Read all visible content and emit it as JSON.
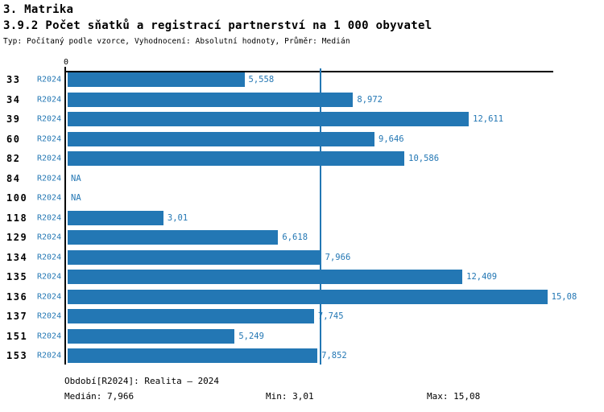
{
  "page": {
    "section_title": "3. Matrika",
    "chart_title": "3.9.2 Počet sňatků a registrací partnerství na 1 000 obyvatel",
    "subtitle": "Typ: Počítaný podle vzorce, Vyhodnocení: Absolutní hodnoty, Průměr: Medián"
  },
  "chart_data": {
    "type": "bar",
    "orientation": "horizontal",
    "title": "3.9.2 Počet sňatků a registrací partnerství na 1 000 obyvatel",
    "axis_zero_label": "0",
    "series_name": "R2024",
    "categories": [
      "33",
      "34",
      "39",
      "60",
      "82",
      "84",
      "100",
      "118",
      "129",
      "134",
      "135",
      "136",
      "137",
      "151",
      "153"
    ],
    "values": [
      5.558,
      8.972,
      12.611,
      9.646,
      10.586,
      null,
      null,
      3.01,
      6.618,
      7.966,
      12.409,
      15.08,
      7.745,
      5.249,
      7.852
    ],
    "value_labels": [
      "5,558",
      "8,972",
      "12,611",
      "9,646",
      "10,586",
      "NA",
      "NA",
      "3,01",
      "6,618",
      "7,966",
      "12,409",
      "15,08",
      "7,745",
      "5,249",
      "7,852"
    ],
    "na_label": "NA",
    "median_value": 7.966,
    "xlim": [
      0,
      15.25
    ],
    "grid": false,
    "legend_position": "none",
    "colors": {
      "bar": "#2377b4",
      "median_line": "#2377b4",
      "value_label": "#2377b4",
      "series_label": "#2377b4",
      "category_label": "#000000",
      "footer_text": "#1d7294"
    }
  },
  "footer": {
    "period": "Období[R2024]: Realita – 2024",
    "median": "Medián: 7,966",
    "min": "Min: 3,01",
    "max": "Max: 15,08"
  }
}
